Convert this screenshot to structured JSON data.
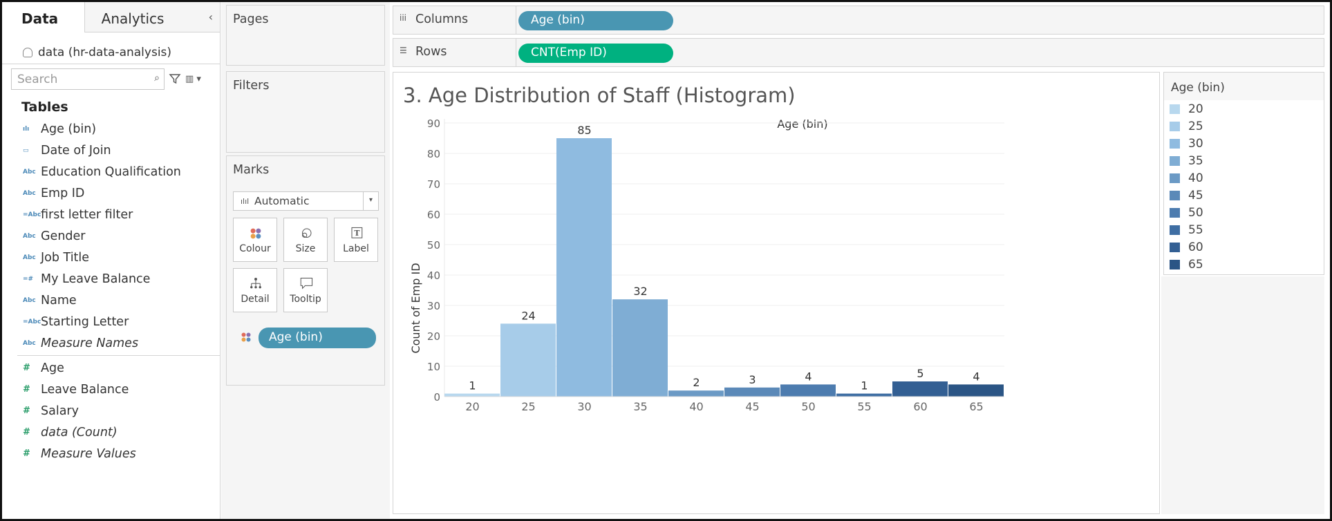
{
  "left_pane": {
    "tabs": [
      {
        "label": "Data"
      },
      {
        "label": "Analytics"
      }
    ],
    "collapse_icon": "chevron-left-icon",
    "datasource": "data (hr-data-analysis)",
    "search_placeholder": "Search",
    "tables_heading": "Tables",
    "dimensions": [
      {
        "icon": "bin-icon",
        "glyph": "ılı",
        "label": "Age (bin)",
        "italic": false
      },
      {
        "icon": "calendar-icon",
        "glyph": "▭",
        "label": "Date of Join",
        "italic": false
      },
      {
        "icon": "abc-icon",
        "glyph": "Abc",
        "label": "Education Qualification",
        "italic": false
      },
      {
        "icon": "abc-icon",
        "glyph": "Abc",
        "label": "Emp ID",
        "italic": false
      },
      {
        "icon": "calc-abc-icon",
        "glyph": "=Abc",
        "label": "first letter filter",
        "italic": false
      },
      {
        "icon": "abc-icon",
        "glyph": "Abc",
        "label": "Gender",
        "italic": false
      },
      {
        "icon": "abc-icon",
        "glyph": "Abc",
        "label": "Job Title",
        "italic": false
      },
      {
        "icon": "calc-number-icon",
        "glyph": "=#",
        "label": "My Leave Balance",
        "italic": false
      },
      {
        "icon": "abc-icon",
        "glyph": "Abc",
        "label": "Name",
        "italic": false
      },
      {
        "icon": "calc-abc-icon",
        "glyph": "=Abc",
        "label": "Starting Letter",
        "italic": false
      },
      {
        "icon": "abc-icon",
        "glyph": "Abc",
        "label": "Measure Names",
        "italic": true
      }
    ],
    "measures": [
      {
        "icon": "number-icon",
        "glyph": "#",
        "label": "Age",
        "italic": false
      },
      {
        "icon": "number-icon",
        "glyph": "#",
        "label": "Leave Balance",
        "italic": false
      },
      {
        "icon": "number-icon",
        "glyph": "#",
        "label": "Salary",
        "italic": false
      },
      {
        "icon": "number-icon",
        "glyph": "#",
        "label": "data (Count)",
        "italic": true
      },
      {
        "icon": "number-icon",
        "glyph": "#",
        "label": "Measure Values",
        "italic": true
      }
    ]
  },
  "cards": {
    "pages": "Pages",
    "filters": "Filters",
    "marks": "Marks",
    "mark_type": "Automatic",
    "mark_buttons": [
      {
        "label": "Colour",
        "icon": "colour-icon"
      },
      {
        "label": "Size",
        "icon": "size-icon"
      },
      {
        "label": "Label",
        "icon": "label-icon"
      },
      {
        "label": "Detail",
        "icon": "detail-icon"
      },
      {
        "label": "Tooltip",
        "icon": "tooltip-icon"
      }
    ],
    "colour_pill": "Age (bin)"
  },
  "shelves": {
    "columns_label": "Columns",
    "columns_pill": "Age (bin)",
    "rows_label": "Rows",
    "rows_pill": "CNT(Emp ID)"
  },
  "colors": {
    "pill_dimension": "#4996b2",
    "pill_measure": "#00b180",
    "bar_palette": [
      "#b8d8ee",
      "#a7cce9",
      "#8fbbe0",
      "#7fadd4",
      "#6b9ac5",
      "#5b89b8",
      "#4d7caf",
      "#3f6ea3",
      "#335f93",
      "#2b5585"
    ]
  },
  "chart_data": {
    "type": "bar",
    "title": "3. Age Distribution of Staff (Histogram)",
    "xlabel": "Age (bin)",
    "ylabel": "Count of Emp ID",
    "categories": [
      "20",
      "25",
      "30",
      "35",
      "40",
      "45",
      "50",
      "55",
      "60",
      "65"
    ],
    "values": [
      1,
      24,
      85,
      32,
      2,
      3,
      4,
      1,
      5,
      4
    ],
    "ylim": [
      0,
      90
    ],
    "yticks": [
      0,
      10,
      20,
      30,
      40,
      50,
      60,
      70,
      80,
      90
    ],
    "grid": true,
    "legend": {
      "title": "Age (bin)",
      "placement": "right",
      "items": [
        "20",
        "25",
        "30",
        "35",
        "40",
        "45",
        "50",
        "55",
        "60",
        "65"
      ]
    }
  }
}
